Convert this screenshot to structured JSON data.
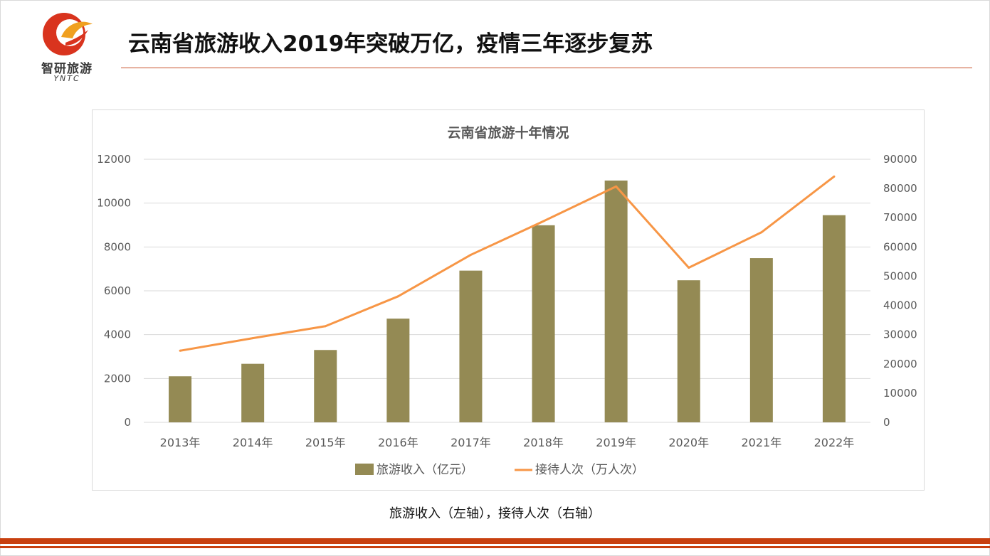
{
  "slide": {
    "title": "云南省旅游收入2019年突破万亿，疫情三年逐步复苏",
    "caption": "旅游收入（左轴），接待人次（右轴）"
  },
  "logo": {
    "name_cn": "智研旅游",
    "name_en": "YNTC"
  },
  "colors": {
    "accent": "#c8400f",
    "bar": "#948a54",
    "line": "#f79646",
    "grid": "#d9d9d9",
    "text": "#595959"
  },
  "chart_data": {
    "type": "bar",
    "title": "云南省旅游十年情况",
    "categories": [
      "2013年",
      "2014年",
      "2015年",
      "2016年",
      "2017年",
      "2018年",
      "2019年",
      "2020年",
      "2021年",
      "2022年"
    ],
    "series": [
      {
        "name": "旅游收入（亿元）",
        "type": "bar",
        "axis": "left",
        "values": [
          2100,
          2670,
          3300,
          4730,
          6920,
          8990,
          11030,
          6480,
          7490,
          9450
        ]
      },
      {
        "name": "接待人次（万人次）",
        "type": "line",
        "axis": "right",
        "values": [
          24500,
          28800,
          32900,
          43100,
          57300,
          68800,
          80700,
          52900,
          65000,
          84100
        ]
      }
    ],
    "left_axis": {
      "min": 0,
      "max": 12000,
      "ticks": [
        0,
        2000,
        4000,
        6000,
        8000,
        10000,
        12000
      ]
    },
    "right_axis": {
      "min": 0,
      "max": 90000,
      "ticks": [
        0,
        10000,
        20000,
        30000,
        40000,
        50000,
        60000,
        70000,
        80000,
        90000
      ]
    },
    "grid": true,
    "legend": "bottom"
  }
}
